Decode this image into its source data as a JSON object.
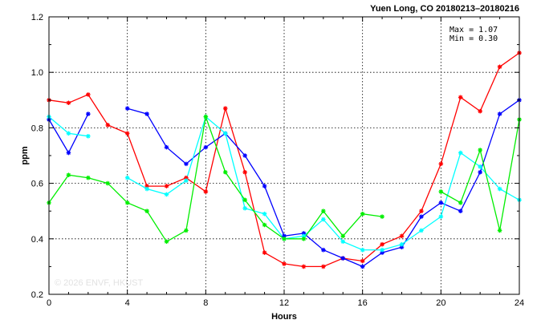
{
  "chart_data": {
    "type": "line",
    "title": "Yuen Long, CO 20180213–20180216",
    "xlabel": "Hours",
    "ylabel": "ppm",
    "xlim": [
      0,
      24
    ],
    "ylim": [
      0.2,
      1.2
    ],
    "x_ticks": [
      0,
      4,
      8,
      12,
      16,
      20,
      24
    ],
    "y_ticks": [
      0.2,
      0.4,
      0.6,
      0.8,
      1.0,
      1.2
    ],
    "y_tick_labels": [
      "0.2",
      "0.4",
      "0.6",
      "0.8",
      "1.0",
      "1.2"
    ],
    "grid": true,
    "annotations": {
      "max": "Max = 1.07",
      "min": "Min = 0.30"
    },
    "watermark": "© 2026 ENVF, HKUST",
    "x": [
      0,
      1,
      2,
      3,
      4,
      5,
      6,
      7,
      8,
      9,
      10,
      11,
      12,
      13,
      14,
      15,
      16,
      17,
      18,
      19,
      20,
      21,
      22,
      23,
      24
    ],
    "series": [
      {
        "color": "#ff0000",
        "values": [
          0.9,
          0.89,
          0.92,
          0.81,
          0.78,
          0.59,
          0.59,
          0.62,
          0.57,
          0.87,
          0.64,
          0.35,
          0.31,
          0.3,
          0.3,
          0.33,
          0.32,
          0.38,
          0.41,
          0.5,
          0.67,
          0.91,
          0.86,
          1.02,
          1.07
        ]
      },
      {
        "color": "#0000ff",
        "values": [
          0.83,
          0.71,
          0.85,
          null,
          0.87,
          0.85,
          0.73,
          0.67,
          0.73,
          0.78,
          0.7,
          0.59,
          0.41,
          0.42,
          0.36,
          0.33,
          0.3,
          0.35,
          0.37,
          0.48,
          0.53,
          0.5,
          0.64,
          0.85,
          0.9
        ]
      },
      {
        "color": "#00ffff",
        "values": [
          0.84,
          0.78,
          0.77,
          null,
          0.62,
          0.58,
          0.56,
          0.61,
          0.84,
          0.78,
          0.51,
          0.49,
          0.4,
          0.41,
          0.47,
          0.39,
          0.36,
          0.36,
          0.38,
          0.43,
          0.48,
          0.71,
          0.66,
          0.58,
          0.54
        ]
      },
      {
        "color": "#00ee00",
        "values": [
          0.53,
          0.63,
          0.62,
          0.6,
          0.53,
          0.5,
          0.39,
          0.43,
          0.84,
          0.64,
          0.54,
          0.45,
          0.4,
          0.4,
          0.5,
          0.41,
          0.49,
          0.48,
          null,
          null,
          0.57,
          0.53,
          0.72,
          0.43,
          0.83
        ]
      }
    ]
  }
}
